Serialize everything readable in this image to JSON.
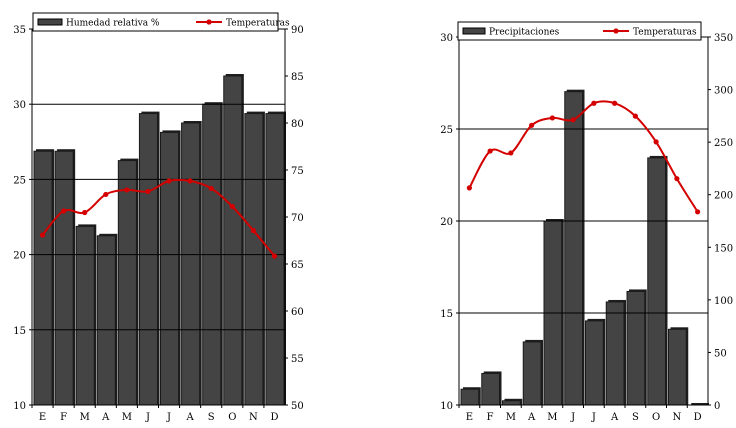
{
  "chart_data": [
    {
      "type": "bar",
      "title": "",
      "xlabel": "",
      "ylabel": "",
      "categories": [
        "E",
        "F",
        "M",
        "A",
        "M",
        "J",
        "J",
        "A",
        "S",
        "O",
        "N",
        "D"
      ],
      "legend_position": "top",
      "grid": true,
      "left_axis": {
        "ylim": [
          10,
          35
        ],
        "ticks": [
          10,
          15,
          20,
          25,
          30,
          35
        ]
      },
      "right_axis": {
        "ylim": [
          50,
          90
        ],
        "ticks": [
          50,
          55,
          60,
          65,
          70,
          75,
          80,
          85,
          90
        ]
      },
      "series": [
        {
          "name": "Humedad relativa %",
          "kind": "bar",
          "axis": "right",
          "color": "#444444",
          "values": [
            77,
            77,
            69,
            68,
            76,
            81,
            79,
            80,
            82,
            85,
            81,
            81
          ]
        },
        {
          "name": "Temperaturas",
          "kind": "line",
          "axis": "left",
          "color": "#d40000",
          "values": [
            21.3,
            22.9,
            22.8,
            24.0,
            24.3,
            24.2,
            24.9,
            24.9,
            24.4,
            23.2,
            21.6,
            19.9
          ]
        }
      ]
    },
    {
      "type": "bar",
      "title": "",
      "xlabel": "",
      "ylabel": "",
      "categories": [
        "E",
        "F",
        "M",
        "A",
        "M",
        "J",
        "J",
        "A",
        "S",
        "O",
        "N",
        "D"
      ],
      "legend_position": "top",
      "grid": true,
      "left_axis": {
        "ylim": [
          10,
          30
        ],
        "ticks": [
          10,
          15,
          20,
          25,
          30
        ]
      },
      "right_axis": {
        "ylim": [
          0,
          350
        ],
        "ticks": [
          0,
          50,
          100,
          150,
          200,
          250,
          300,
          350
        ]
      },
      "series": [
        {
          "name": "Precipitaciones",
          "kind": "bar",
          "axis": "right",
          "color": "#444444",
          "values": [
            15,
            30,
            4,
            60,
            175,
            298,
            80,
            98,
            108,
            235,
            72,
            0
          ]
        },
        {
          "name": "Temperaturas",
          "kind": "line",
          "axis": "left",
          "color": "#d40000",
          "values": [
            21.8,
            23.8,
            23.7,
            25.2,
            25.6,
            25.5,
            26.4,
            26.4,
            25.7,
            24.3,
            22.3,
            20.5
          ]
        }
      ]
    }
  ]
}
